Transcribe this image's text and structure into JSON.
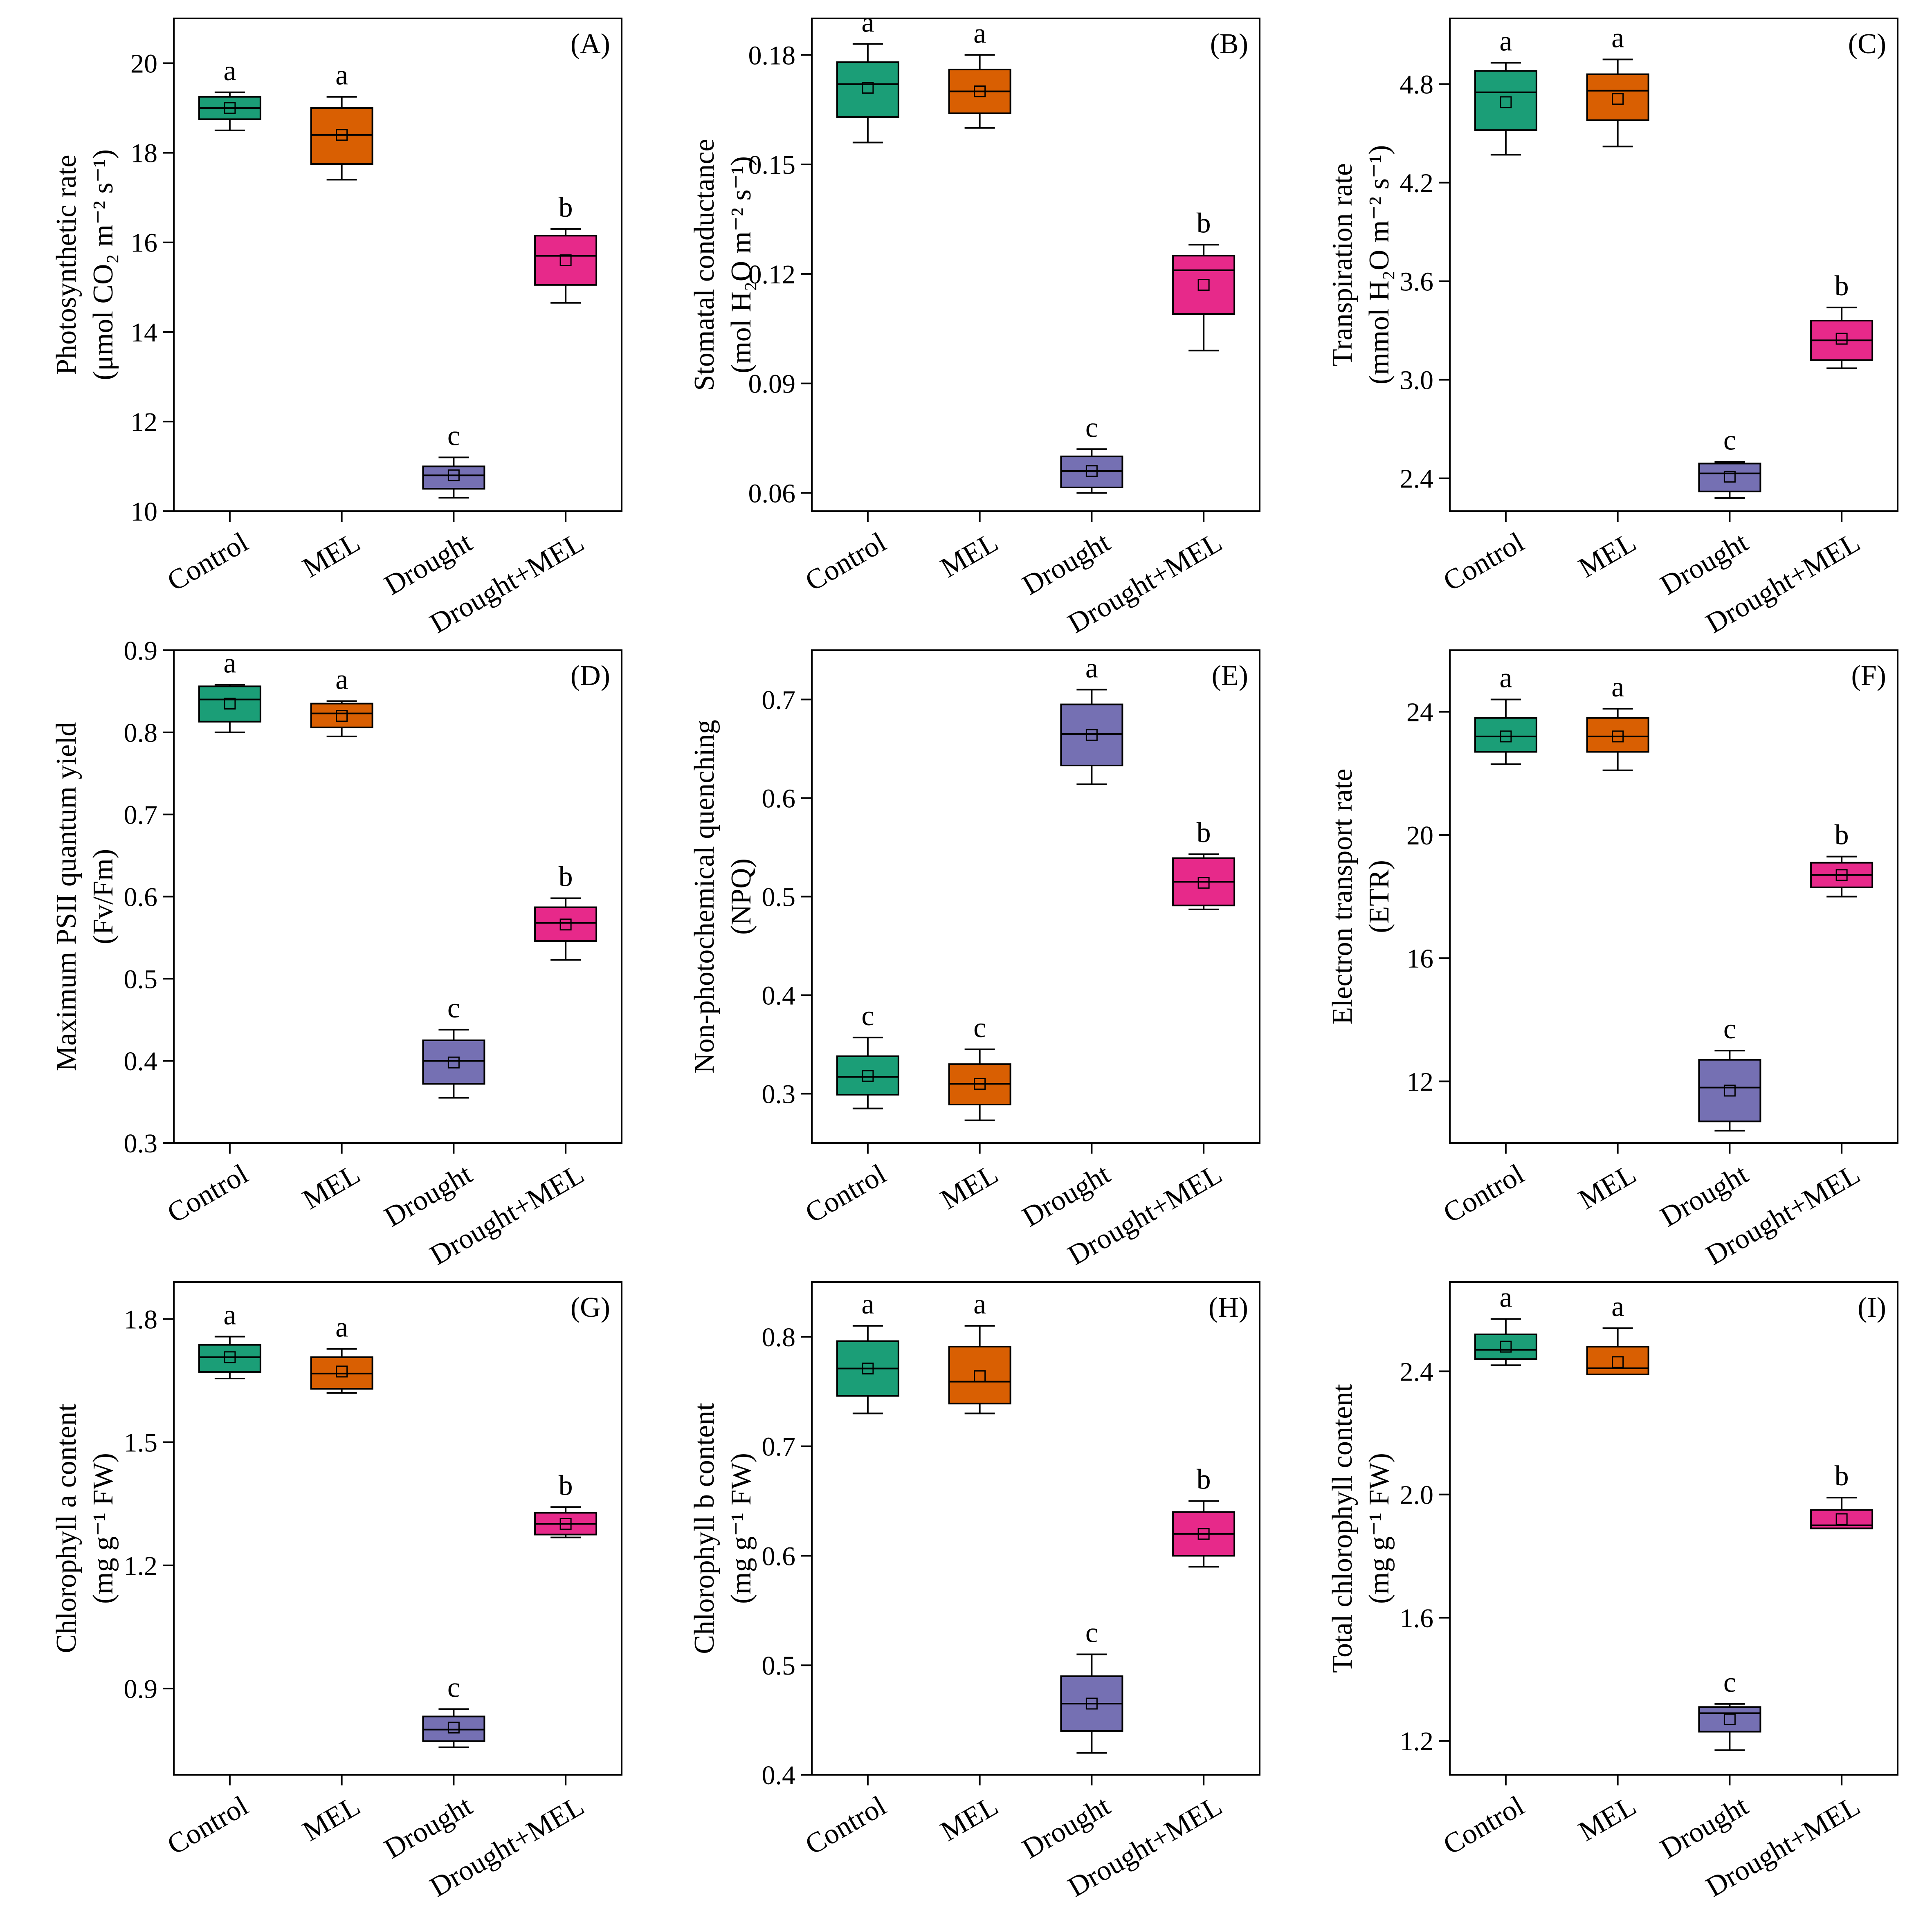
{
  "colors": {
    "Control": "#1b9e77",
    "MEL": "#d95f02",
    "Drought": "#7570b3",
    "Drought+MEL": "#e7298a"
  },
  "chart_data": [
    {
      "type": "box",
      "panel": "(A)",
      "ylabel_line1": "Photosynthetic rate",
      "ylabel_line2": "(μmol CO₂ m⁻² s⁻¹)",
      "ylim": [
        10,
        21
      ],
      "yticks": [
        10,
        12,
        14,
        16,
        18,
        20
      ],
      "tick_labels": [
        "10",
        "12",
        "14",
        "16",
        "18",
        "20"
      ],
      "categories": [
        "Control",
        "MEL",
        "Drought",
        "Drought+MEL"
      ],
      "boxes": [
        {
          "min": 18.5,
          "q1": 18.75,
          "median": 19.0,
          "q3": 19.25,
          "max": 19.35,
          "mean": 19.0,
          "letter": "a"
        },
        {
          "min": 17.4,
          "q1": 17.75,
          "median": 18.4,
          "q3": 19.0,
          "max": 19.25,
          "mean": 18.4,
          "letter": "a"
        },
        {
          "min": 10.3,
          "q1": 10.5,
          "median": 10.8,
          "q3": 11.0,
          "max": 11.2,
          "mean": 10.8,
          "letter": "c"
        },
        {
          "min": 14.65,
          "q1": 15.05,
          "median": 15.7,
          "q3": 16.15,
          "max": 16.3,
          "mean": 15.6,
          "letter": "b"
        }
      ]
    },
    {
      "type": "box",
      "panel": "(B)",
      "ylabel_line1": "Stomatal conductance",
      "ylabel_line2": "(mol H₂O m⁻² s⁻¹)",
      "ylim": [
        0.055,
        0.19
      ],
      "yticks": [
        0.06,
        0.09,
        0.12,
        0.15,
        0.18
      ],
      "tick_labels": [
        "0.06",
        "0.09",
        "0.12",
        "0.15",
        "0.18"
      ],
      "categories": [
        "Control",
        "MEL",
        "Drought",
        "Drought+MEL"
      ],
      "boxes": [
        {
          "min": 0.156,
          "q1": 0.163,
          "median": 0.172,
          "q3": 0.178,
          "max": 0.183,
          "mean": 0.171,
          "letter": "a"
        },
        {
          "min": 0.16,
          "q1": 0.164,
          "median": 0.17,
          "q3": 0.176,
          "max": 0.18,
          "mean": 0.17,
          "letter": "a"
        },
        {
          "min": 0.06,
          "q1": 0.0615,
          "median": 0.066,
          "q3": 0.07,
          "max": 0.072,
          "mean": 0.066,
          "letter": "c"
        },
        {
          "min": 0.099,
          "q1": 0.109,
          "median": 0.121,
          "q3": 0.125,
          "max": 0.128,
          "mean": 0.117,
          "letter": "b"
        }
      ]
    },
    {
      "type": "box",
      "panel": "(C)",
      "ylabel_line1": "Transpiration rate",
      "ylabel_line2": "(mmol H₂O m⁻² s⁻¹)",
      "ylim": [
        2.2,
        5.2
      ],
      "yticks": [
        2.4,
        3.0,
        3.6,
        4.2,
        4.8
      ],
      "tick_labels": [
        "2.4",
        "3.0",
        "3.6",
        "4.2",
        "4.8"
      ],
      "categories": [
        "Control",
        "MEL",
        "Drought",
        "Drought+MEL"
      ],
      "boxes": [
        {
          "min": 4.37,
          "q1": 4.52,
          "median": 4.75,
          "q3": 4.88,
          "max": 4.93,
          "mean": 4.69,
          "letter": "a"
        },
        {
          "min": 4.42,
          "q1": 4.58,
          "median": 4.76,
          "q3": 4.86,
          "max": 4.95,
          "mean": 4.71,
          "letter": "a"
        },
        {
          "min": 2.28,
          "q1": 2.32,
          "median": 2.43,
          "q3": 2.49,
          "max": 2.5,
          "mean": 2.41,
          "letter": "c"
        },
        {
          "min": 3.07,
          "q1": 3.12,
          "median": 3.24,
          "q3": 3.36,
          "max": 3.44,
          "mean": 3.25,
          "letter": "b"
        }
      ]
    },
    {
      "type": "box",
      "panel": "(D)",
      "ylabel_line1": "Maximum PSII quantum yield",
      "ylabel_line2": "(Fv/Fm)",
      "ylim": [
        0.3,
        0.9
      ],
      "yticks": [
        0.3,
        0.4,
        0.5,
        0.6,
        0.7,
        0.8,
        0.9
      ],
      "tick_labels": [
        "0.3",
        "0.4",
        "0.5",
        "0.6",
        "0.7",
        "0.8",
        "0.9"
      ],
      "categories": [
        "Control",
        "MEL",
        "Drought",
        "Drought+MEL"
      ],
      "boxes": [
        {
          "min": 0.8,
          "q1": 0.813,
          "median": 0.84,
          "q3": 0.856,
          "max": 0.858,
          "mean": 0.835,
          "letter": "a"
        },
        {
          "min": 0.795,
          "q1": 0.806,
          "median": 0.823,
          "q3": 0.835,
          "max": 0.838,
          "mean": 0.82,
          "letter": "a"
        },
        {
          "min": 0.355,
          "q1": 0.372,
          "median": 0.4,
          "q3": 0.425,
          "max": 0.438,
          "mean": 0.398,
          "letter": "c"
        },
        {
          "min": 0.523,
          "q1": 0.546,
          "median": 0.568,
          "q3": 0.587,
          "max": 0.598,
          "mean": 0.566,
          "letter": "b"
        }
      ]
    },
    {
      "type": "box",
      "panel": "(E)",
      "ylabel_line1": "Non-photochemical quenching",
      "ylabel_line2": "(NPQ)",
      "ylim": [
        0.25,
        0.75
      ],
      "yticks": [
        0.3,
        0.4,
        0.5,
        0.6,
        0.7
      ],
      "tick_labels": [
        "0.3",
        "0.4",
        "0.5",
        "0.6",
        "0.7"
      ],
      "categories": [
        "Control",
        "MEL",
        "Drought",
        "Drought+MEL"
      ],
      "boxes": [
        {
          "min": 0.285,
          "q1": 0.299,
          "median": 0.317,
          "q3": 0.338,
          "max": 0.357,
          "mean": 0.318,
          "letter": "c"
        },
        {
          "min": 0.273,
          "q1": 0.289,
          "median": 0.31,
          "q3": 0.33,
          "max": 0.345,
          "mean": 0.31,
          "letter": "c"
        },
        {
          "min": 0.614,
          "q1": 0.633,
          "median": 0.665,
          "q3": 0.695,
          "max": 0.71,
          "mean": 0.664,
          "letter": "a"
        },
        {
          "min": 0.487,
          "q1": 0.491,
          "median": 0.515,
          "q3": 0.539,
          "max": 0.543,
          "mean": 0.514,
          "letter": "b"
        }
      ]
    },
    {
      "type": "box",
      "panel": "(F)",
      "ylabel_line1": "Electron transport rate",
      "ylabel_line2": "(ETR)",
      "ylim": [
        10,
        26
      ],
      "yticks": [
        12,
        16,
        20,
        24
      ],
      "tick_labels": [
        "12",
        "16",
        "20",
        "24"
      ],
      "categories": [
        "Control",
        "MEL",
        "Drought",
        "Drought+MEL"
      ],
      "boxes": [
        {
          "min": 22.3,
          "q1": 22.7,
          "median": 23.2,
          "q3": 23.8,
          "max": 24.4,
          "mean": 23.2,
          "letter": "a"
        },
        {
          "min": 22.1,
          "q1": 22.7,
          "median": 23.2,
          "q3": 23.8,
          "max": 24.1,
          "mean": 23.2,
          "letter": "a"
        },
        {
          "min": 10.4,
          "q1": 10.7,
          "median": 11.8,
          "q3": 12.7,
          "max": 13.0,
          "mean": 11.7,
          "letter": "c"
        },
        {
          "min": 18.0,
          "q1": 18.3,
          "median": 18.7,
          "q3": 19.1,
          "max": 19.3,
          "mean": 18.7,
          "letter": "b"
        }
      ]
    },
    {
      "type": "box",
      "panel": "(G)",
      "ylabel_line1": "Chlorophyll a content",
      "ylabel_line2": "(mg g⁻¹ FW)",
      "ylim": [
        0.69,
        1.89
      ],
      "yticks": [
        0.9,
        1.2,
        1.5,
        1.8
      ],
      "tick_labels": [
        "0.9",
        "1.2",
        "1.5",
        "1.8"
      ],
      "categories": [
        "Control",
        "MEL",
        "Drought",
        "Drought+MEL"
      ],
      "boxes": [
        {
          "min": 1.655,
          "q1": 1.671,
          "median": 1.707,
          "q3": 1.737,
          "max": 1.757,
          "mean": 1.707,
          "letter": "a"
        },
        {
          "min": 1.62,
          "q1": 1.63,
          "median": 1.667,
          "q3": 1.707,
          "max": 1.727,
          "mean": 1.672,
          "letter": "a"
        },
        {
          "min": 0.757,
          "q1": 0.772,
          "median": 0.8,
          "q3": 0.832,
          "max": 0.85,
          "mean": 0.805,
          "letter": "c"
        },
        {
          "min": 1.268,
          "q1": 1.275,
          "median": 1.301,
          "q3": 1.328,
          "max": 1.342,
          "mean": 1.301,
          "letter": "b"
        }
      ]
    },
    {
      "type": "box",
      "panel": "(H)",
      "ylabel_line1": "Chlorophyll b content",
      "ylabel_line2": "(mg g⁻¹ FW)",
      "ylim": [
        0.4,
        0.85
      ],
      "yticks": [
        0.4,
        0.5,
        0.6,
        0.7,
        0.8
      ],
      "tick_labels": [
        "0.4",
        "0.5",
        "0.6",
        "0.7",
        "0.8"
      ],
      "categories": [
        "Control",
        "MEL",
        "Drought",
        "Drought+MEL"
      ],
      "boxes": [
        {
          "min": 0.73,
          "q1": 0.746,
          "median": 0.771,
          "q3": 0.796,
          "max": 0.81,
          "mean": 0.771,
          "letter": "a"
        },
        {
          "min": 0.73,
          "q1": 0.739,
          "median": 0.759,
          "q3": 0.791,
          "max": 0.81,
          "mean": 0.764,
          "letter": "a"
        },
        {
          "min": 0.42,
          "q1": 0.44,
          "median": 0.465,
          "q3": 0.49,
          "max": 0.51,
          "mean": 0.465,
          "letter": "c"
        },
        {
          "min": 0.59,
          "q1": 0.6,
          "median": 0.62,
          "q3": 0.64,
          "max": 0.65,
          "mean": 0.62,
          "letter": "b"
        }
      ]
    },
    {
      "type": "box",
      "panel": "(I)",
      "ylabel_line1": "Total chlorophyll content",
      "ylabel_line2": "(mg g⁻¹ FW)",
      "ylim": [
        1.09,
        2.69
      ],
      "yticks": [
        1.2,
        1.6,
        2.0,
        2.4
      ],
      "tick_labels": [
        "1.2",
        "1.6",
        "2.0",
        "2.4"
      ],
      "categories": [
        "Control",
        "MEL",
        "Drought",
        "Drought+MEL"
      ],
      "boxes": [
        {
          "min": 2.42,
          "q1": 2.44,
          "median": 2.47,
          "q3": 2.52,
          "max": 2.57,
          "mean": 2.48,
          "letter": "a"
        },
        {
          "min": 2.39,
          "q1": 2.39,
          "median": 2.41,
          "q3": 2.48,
          "max": 2.54,
          "mean": 2.43,
          "letter": "a"
        },
        {
          "min": 1.17,
          "q1": 1.23,
          "median": 1.29,
          "q3": 1.31,
          "max": 1.32,
          "mean": 1.27,
          "letter": "c"
        },
        {
          "min": 1.89,
          "q1": 1.89,
          "median": 1.9,
          "q3": 1.95,
          "max": 1.99,
          "mean": 1.92,
          "letter": "b"
        }
      ]
    }
  ]
}
